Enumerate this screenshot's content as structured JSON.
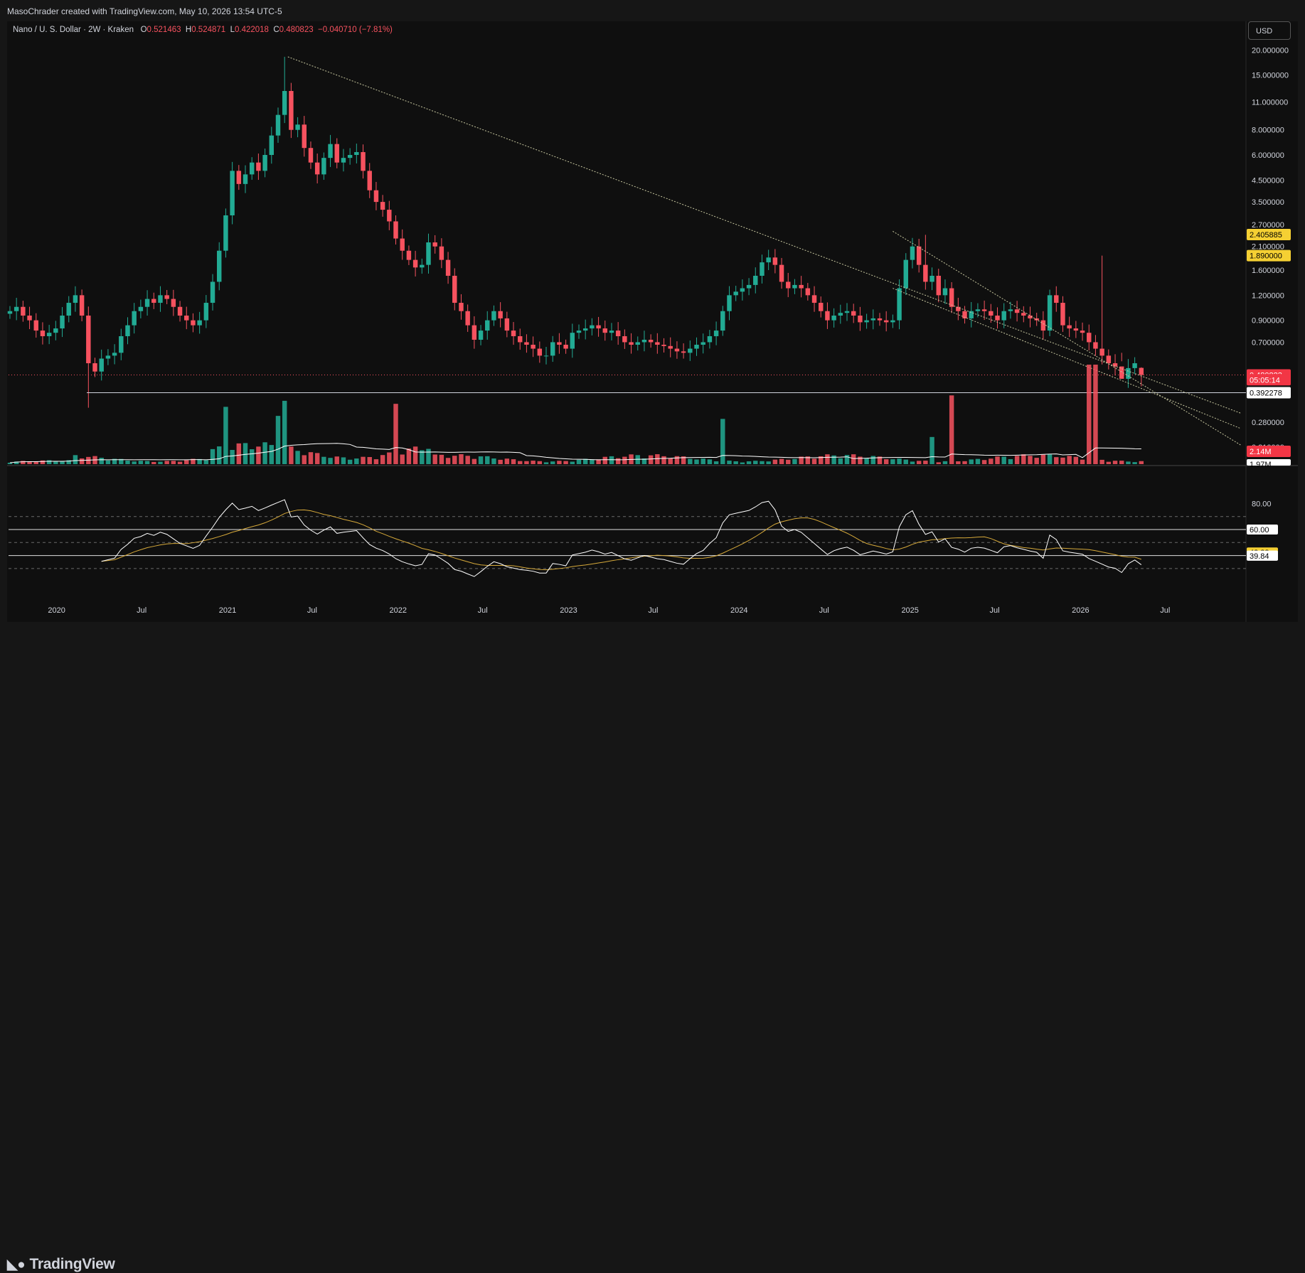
{
  "header": {
    "credit": "MasoChrader created with TradingView.com, May 10, 2026 13:54 UTC-5",
    "currency": "USD"
  },
  "legend": {
    "symbol": "Nano / U. S. Dollar · 2W · Kraken",
    "o_label": "O",
    "o_value": "0.521463",
    "h_label": "H",
    "h_value": "0.524871",
    "l_label": "L",
    "l_value": "0.422018",
    "c_label": "C",
    "c_value": "0.480823",
    "change": "−0.040710 (−7.81%)"
  },
  "logo": "TradingView",
  "colors": {
    "up": "#22ab94",
    "down": "#f7525f",
    "rsi": "#ffffff",
    "rsi_ma": "#d6a93a",
    "trendline": "#c8c8a0",
    "background": "#0f0f0f"
  },
  "chart_data": [
    {
      "type": "candlestick",
      "title": "Nano / U. S. Dollar · 2W · Kraken",
      "scale": "log",
      "ylim": [
        0.18,
        24
      ],
      "xlim": [
        "2019-09-20",
        "2026-12-15"
      ],
      "x_tick_labels": [
        {
          "label": "2020",
          "date": "2020-01-01"
        },
        {
          "label": "Jul",
          "date": "2020-07-01"
        },
        {
          "label": "2021",
          "date": "2021-01-01"
        },
        {
          "label": "Jul",
          "date": "2021-07-01"
        },
        {
          "label": "2022",
          "date": "2022-01-01"
        },
        {
          "label": "Jul",
          "date": "2022-07-01"
        },
        {
          "label": "2023",
          "date": "2023-01-01"
        },
        {
          "label": "Jul",
          "date": "2023-07-01"
        },
        {
          "label": "2024",
          "date": "2024-01-01"
        },
        {
          "label": "Jul",
          "date": "2024-07-01"
        },
        {
          "label": "2025",
          "date": "2025-01-01"
        },
        {
          "label": "Jul",
          "date": "2025-07-01"
        },
        {
          "label": "2026",
          "date": "2026-01-01"
        },
        {
          "label": "Jul",
          "date": "2026-07-01"
        }
      ],
      "y_tick_labels": [
        "20.000000",
        "15.000000",
        "11.000000",
        "8.000000",
        "6.000000",
        "4.500000",
        "3.500000",
        "2.700000",
        "2.100000",
        "1.600000",
        "1.200000",
        "0.900000",
        "0.700000",
        "0.280000",
        "0.210000"
      ],
      "y_tick_values": [
        20,
        15,
        11,
        8,
        6,
        4.5,
        3.5,
        2.7,
        2.1,
        1.6,
        1.2,
        0.9,
        0.7,
        0.28,
        0.21
      ],
      "price_labels": [
        {
          "text": "2.405885",
          "value": 2.405885,
          "style": "yellow"
        },
        {
          "text": "1.890000",
          "value": 1.89,
          "style": "yellow"
        },
        {
          "text": "0.480823",
          "value": 0.480823,
          "style": "red"
        },
        {
          "text": "05:05:14",
          "value": 0.455,
          "style": "red"
        },
        {
          "text": "0.392278",
          "value": 0.392278,
          "style": "white"
        }
      ],
      "horizontal_lines": [
        0.392278
      ],
      "last_price_line": 0.480823,
      "trendlines": [
        {
          "from": [
            "2021-05-10",
            18.5
          ],
          "to": [
            "2026-12-10",
            0.31
          ]
        },
        {
          "from": [
            "2024-11-25",
            2.5
          ],
          "to": [
            "2026-12-10",
            0.215
          ]
        },
        {
          "from": [
            "2024-11-25",
            1.3
          ],
          "to": [
            "2026-12-10",
            0.26
          ]
        }
      ],
      "candles": {
        "start": "2019-09-23",
        "step_days": 14,
        "close": [
          1.0,
          1.05,
          0.95,
          0.9,
          0.8,
          0.75,
          0.78,
          0.82,
          0.95,
          1.1,
          1.2,
          0.95,
          0.55,
          0.5,
          0.58,
          0.6,
          0.62,
          0.75,
          0.85,
          1.0,
          1.05,
          1.15,
          1.1,
          1.2,
          1.15,
          1.05,
          0.95,
          0.9,
          0.85,
          0.9,
          1.1,
          1.4,
          2.0,
          3.0,
          5.0,
          4.3,
          4.8,
          5.5,
          5.0,
          6.0,
          7.5,
          9.5,
          12.5,
          8.0,
          8.5,
          6.5,
          5.5,
          4.8,
          5.8,
          6.8,
          5.5,
          5.8,
          6.0,
          6.2,
          5.0,
          4.0,
          3.5,
          3.2,
          2.8,
          2.3,
          2.0,
          1.8,
          1.65,
          1.7,
          2.2,
          2.1,
          1.8,
          1.5,
          1.1,
          1.0,
          0.85,
          0.72,
          0.8,
          0.9,
          1.0,
          0.92,
          0.8,
          0.75,
          0.7,
          0.68,
          0.65,
          0.6,
          0.6,
          0.7,
          0.68,
          0.65,
          0.78,
          0.8,
          0.82,
          0.85,
          0.82,
          0.78,
          0.8,
          0.75,
          0.7,
          0.68,
          0.7,
          0.72,
          0.7,
          0.68,
          0.67,
          0.65,
          0.63,
          0.62,
          0.65,
          0.68,
          0.7,
          0.75,
          0.8,
          1.0,
          1.2,
          1.25,
          1.3,
          1.35,
          1.5,
          1.75,
          1.85,
          1.7,
          1.4,
          1.3,
          1.35,
          1.3,
          1.2,
          1.1,
          1.0,
          0.9,
          0.95,
          0.98,
          1.0,
          0.95,
          0.88,
          0.9,
          0.92,
          0.9,
          0.88,
          0.9,
          1.3,
          1.8,
          2.1,
          1.7,
          1.4,
          1.5,
          1.2,
          1.3,
          1.05,
          1.0,
          0.92,
          1.0,
          1.02,
          1.0,
          0.95,
          0.9,
          1.0,
          1.02,
          0.98,
          0.95,
          0.92,
          0.9,
          0.8,
          1.2,
          1.1,
          0.85,
          0.82,
          0.8,
          0.78,
          0.7,
          0.65,
          0.6,
          0.55,
          0.53,
          0.46,
          0.52,
          0.55,
          0.481
        ],
        "low_dips": [
          {
            "index": 12,
            "low": 0.33
          },
          {
            "index": 103,
            "low": 0.58
          },
          {
            "index": 170,
            "low": 0.62
          }
        ],
        "high_spikes": [
          {
            "index": 42,
            "high": 18.5
          },
          {
            "index": 140,
            "high": 2.4
          },
          {
            "index": 167,
            "high": 1.89
          }
        ],
        "last": {
          "open": 0.521463,
          "high": 0.524871,
          "low": 0.422018,
          "close": 0.480823
        }
      }
    },
    {
      "type": "bar",
      "title": "Volume",
      "label": "2.14M",
      "label_partial": "1.97M",
      "ma_window": 20,
      "spikes": [
        {
          "index": 33,
          "value": 9.5
        },
        {
          "index": 41,
          "value": 8.0
        },
        {
          "index": 42,
          "value": 10.5
        },
        {
          "index": 59,
          "value": 10.0
        },
        {
          "index": 109,
          "value": 7.5
        },
        {
          "index": 141,
          "value": 4.5
        },
        {
          "index": 144,
          "value": 11.4
        },
        {
          "index": 165,
          "value": 16.5
        },
        {
          "index": 166,
          "value": 16.5
        }
      ]
    },
    {
      "type": "line",
      "title": "RSI",
      "ylim": [
        8,
        100
      ],
      "y_tick_labels": [
        "80.00"
      ],
      "levels": [
        70,
        60,
        50,
        40,
        30
      ],
      "solid_levels": [
        60,
        40
      ],
      "value_labels": [
        {
          "text": "60.00",
          "value": 60,
          "style": "white"
        },
        {
          "text": "42.38",
          "value": 42.38,
          "style": "yellow"
        },
        {
          "text": "40.00",
          "value": 40,
          "style": "white"
        },
        {
          "text": "39.84",
          "value": 39.84,
          "style": "white"
        }
      ],
      "series": [
        {
          "name": "RSI",
          "period": 14
        },
        {
          "name": "RSI-based MA",
          "period": 14
        }
      ]
    }
  ]
}
